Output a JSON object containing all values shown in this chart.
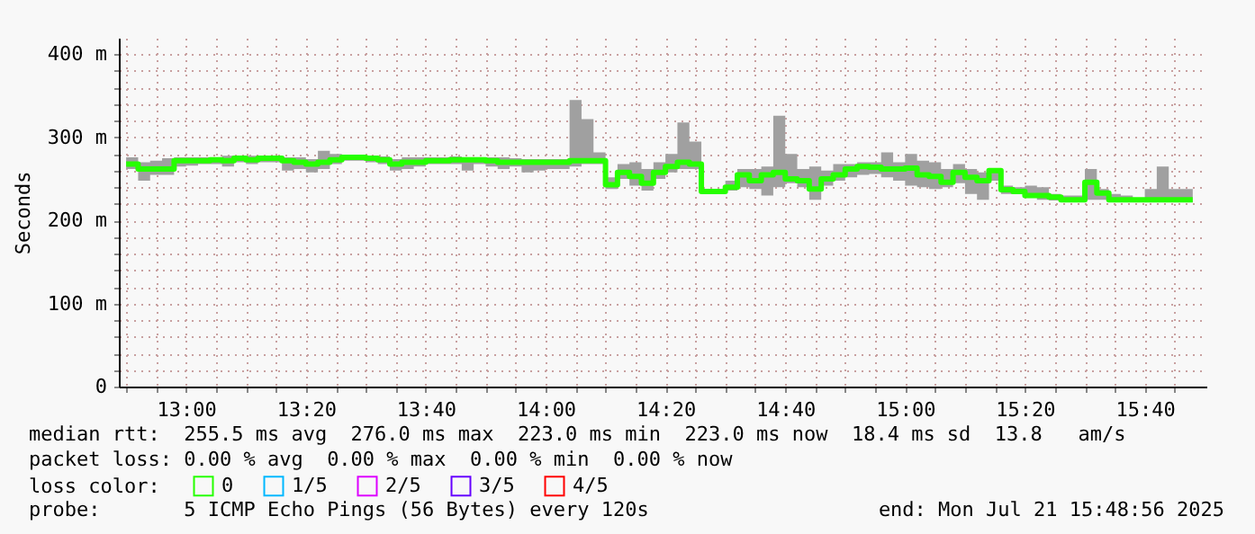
{
  "chart_data": {
    "type": "step",
    "ylabel": "Seconds",
    "legend_title": "loss color:",
    "legend": "bottom",
    "grid": true,
    "marker": "none",
    "xlim": [
      12.813,
      15.838
    ],
    "ylim": [
      0,
      420
    ],
    "xticks": [
      {
        "value": 12.8333,
        "label": null
      },
      {
        "value": 12.9167,
        "label": null
      },
      {
        "value": 13,
        "label": "13:00"
      },
      {
        "value": 13.0833,
        "label": null
      },
      {
        "value": 13.1667,
        "label": null
      },
      {
        "value": 13.25,
        "label": null
      },
      {
        "value": 13.3333,
        "label": "13:20"
      },
      {
        "value": 13.4167,
        "label": null
      },
      {
        "value": 13.5,
        "label": null
      },
      {
        "value": 13.5833,
        "label": null
      },
      {
        "value": 13.6667,
        "label": "13:40"
      },
      {
        "value": 13.75,
        "label": null
      },
      {
        "value": 13.8333,
        "label": null
      },
      {
        "value": 13.9167,
        "label": null
      },
      {
        "value": 14,
        "label": "14:00"
      },
      {
        "value": 14.0833,
        "label": null
      },
      {
        "value": 14.1667,
        "label": null
      },
      {
        "value": 14.25,
        "label": null
      },
      {
        "value": 14.3333,
        "label": "14:20"
      },
      {
        "value": 14.4167,
        "label": null
      },
      {
        "value": 14.5,
        "label": null
      },
      {
        "value": 14.5833,
        "label": null
      },
      {
        "value": 14.6667,
        "label": "14:40"
      },
      {
        "value": 14.75,
        "label": null
      },
      {
        "value": 14.8333,
        "label": null
      },
      {
        "value": 14.9167,
        "label": null
      },
      {
        "value": 15,
        "label": "15:00"
      },
      {
        "value": 15.0833,
        "label": null
      },
      {
        "value": 15.1667,
        "label": null
      },
      {
        "value": 15.25,
        "label": null
      },
      {
        "value": 15.3333,
        "label": "15:20"
      },
      {
        "value": 15.4167,
        "label": null
      },
      {
        "value": 15.5,
        "label": null
      },
      {
        "value": 15.5833,
        "label": null
      },
      {
        "value": 15.6667,
        "label": "15:40"
      },
      {
        "value": 15.75,
        "label": null
      }
    ],
    "yticks": [
      0,
      {
        "value": 20,
        "label": null
      },
      {
        "value": 40,
        "label": null
      },
      {
        "value": 60,
        "label": null
      },
      {
        "value": 80,
        "label": null
      },
      {
        "value": 100,
        "label": "100 m"
      },
      {
        "value": 120,
        "label": null
      },
      {
        "value": 140,
        "label": null
      },
      {
        "value": 160,
        "label": null
      },
      {
        "value": 180,
        "label": null
      },
      {
        "value": 200,
        "label": "200 m"
      },
      {
        "value": 220,
        "label": null
      },
      {
        "value": 240,
        "label": null
      },
      {
        "value": 260,
        "label": null
      },
      {
        "value": 280,
        "label": null
      },
      {
        "value": 300,
        "label": "300 m"
      },
      {
        "value": 320,
        "label": null
      },
      {
        "value": 340,
        "label": null
      },
      {
        "value": 360,
        "label": null
      },
      {
        "value": 380,
        "label": null
      },
      {
        "value": 400,
        "label": "400 m"
      }
    ],
    "x": [
      12.8333,
      12.8667,
      12.9,
      12.9333,
      12.9667,
      13,
      13.0333,
      13.0667,
      13.1,
      13.1333,
      13.1667,
      13.2,
      13.2333,
      13.2667,
      13.3,
      13.3333,
      13.3667,
      13.4,
      13.4333,
      13.4667,
      13.5,
      13.5333,
      13.5667,
      13.6,
      13.6333,
      13.6667,
      13.7,
      13.7333,
      13.7667,
      13.8,
      13.8333,
      13.8667,
      13.9,
      13.9333,
      13.9667,
      14,
      14.0333,
      14.0667,
      14.1,
      14.1333,
      14.1667,
      14.2,
      14.2333,
      14.2667,
      14.3,
      14.3333,
      14.3667,
      14.4,
      14.4333,
      14.4667,
      14.5,
      14.5333,
      14.5667,
      14.6,
      14.6333,
      14.6667,
      14.7,
      14.7333,
      14.7667,
      14.8,
      14.8333,
      14.8667,
      14.9,
      14.9333,
      14.9667,
      15,
      15.0333,
      15.0667,
      15.1,
      15.1333,
      15.1667,
      15.2,
      15.2333,
      15.2667,
      15.3,
      15.3333,
      15.3667,
      15.4,
      15.4333,
      15.4667,
      15.5,
      15.5333,
      15.5667,
      15.6,
      15.6333,
      15.6667,
      15.7,
      15.7333,
      15.7667,
      15.8
    ],
    "series": [
      {
        "name": "0",
        "color": "#26ff00",
        "values": [
          268,
          262,
          262,
          262,
          272,
          272,
          272,
          273,
          272,
          275,
          273,
          275,
          275,
          272,
          270,
          268,
          270,
          273,
          276,
          276,
          275,
          273,
          268,
          270,
          270,
          272,
          272,
          273,
          273,
          273,
          272,
          270,
          270,
          270,
          270,
          270,
          270,
          272,
          272,
          272,
          243,
          258,
          253,
          245,
          258,
          265,
          270,
          268,
          235,
          235,
          240,
          255,
          248,
          255,
          258,
          250,
          248,
          238,
          250,
          255,
          262,
          265,
          264,
          262,
          262,
          263,
          255,
          253,
          246,
          258,
          252,
          248,
          260,
          237,
          235,
          230,
          230,
          228,
          225,
          225,
          246,
          233,
          225,
          225,
          225,
          225,
          225,
          225,
          225,
          225
        ],
        "lower": [
          262,
          248,
          255,
          255,
          265,
          266,
          268,
          268,
          265,
          270,
          268,
          270,
          270,
          260,
          262,
          258,
          262,
          268,
          272,
          272,
          270,
          268,
          260,
          262,
          265,
          268,
          268,
          268,
          260,
          268,
          265,
          262,
          265,
          258,
          260,
          262,
          262,
          265,
          268,
          268,
          238,
          250,
          242,
          236,
          250,
          258,
          262,
          262,
          232,
          232,
          236,
          240,
          238,
          230,
          240,
          245,
          240,
          225,
          242,
          248,
          252,
          255,
          256,
          252,
          248,
          242,
          240,
          238,
          240,
          245,
          232,
          225,
          248,
          232,
          232,
          228,
          225,
          224,
          222,
          222,
          225,
          225,
          222,
          222,
          222,
          222,
          222,
          222,
          222,
          222
        ],
        "upper": [
          276,
          270,
          272,
          275,
          276,
          276,
          276,
          276,
          278,
          278,
          278,
          277,
          277,
          276,
          276,
          274,
          284,
          280,
          278,
          278,
          277,
          277,
          274,
          276,
          276,
          276,
          276,
          277,
          276,
          276,
          276,
          276,
          275,
          274,
          274,
          274,
          274,
          345,
          322,
          282,
          252,
          268,
          270,
          262,
          270,
          280,
          318,
          295,
          238,
          238,
          248,
          262,
          262,
          265,
          326,
          280,
          262,
          265,
          260,
          268,
          268,
          270,
          270,
          282,
          270,
          280,
          272,
          270,
          262,
          268,
          262,
          258,
          262,
          242,
          240,
          242,
          240,
          232,
          230,
          230,
          262,
          238,
          232,
          230,
          225,
          238,
          265,
          238,
          238,
          228
        ]
      },
      {
        "name": "1/5",
        "color": "#00b8ff",
        "values": [
          null,
          null,
          null,
          null,
          null,
          null,
          null,
          null,
          null,
          null,
          null,
          null,
          null,
          null,
          null,
          null,
          null,
          null,
          null,
          null,
          null,
          null,
          null,
          null,
          null,
          null,
          null,
          null,
          null,
          null,
          null,
          null,
          null,
          null,
          null,
          null,
          null,
          null,
          null,
          null,
          null,
          null,
          null,
          null,
          null,
          null,
          null,
          null,
          null,
          null,
          null,
          null,
          null,
          null,
          null,
          null,
          null,
          null,
          null,
          null,
          null,
          null,
          null,
          null,
          null,
          null,
          null,
          null,
          null,
          null,
          null,
          null,
          null,
          null,
          null,
          null,
          null,
          null,
          null,
          null,
          null,
          null,
          null,
          null,
          null,
          null,
          null,
          null,
          null,
          null
        ]
      },
      {
        "name": "2/5",
        "color": "#dd00ff",
        "values": [
          null,
          null,
          null,
          null,
          null,
          null,
          null,
          null,
          null,
          null,
          null,
          null,
          null,
          null,
          null,
          null,
          null,
          null,
          null,
          null,
          null,
          null,
          null,
          null,
          null,
          null,
          null,
          null,
          null,
          null,
          null,
          null,
          null,
          null,
          null,
          null,
          null,
          null,
          null,
          null,
          null,
          null,
          null,
          null,
          null,
          null,
          null,
          null,
          null,
          null,
          null,
          null,
          null,
          null,
          null,
          null,
          null,
          null,
          null,
          null,
          null,
          null,
          null,
          null,
          null,
          null,
          null,
          null,
          null,
          null,
          null,
          null,
          null,
          null,
          null,
          null,
          null,
          null,
          null,
          null,
          null,
          null,
          null,
          null,
          null,
          null,
          null,
          null,
          null,
          null
        ]
      },
      {
        "name": "3/5",
        "color": "#6600ff",
        "values": [
          null,
          null,
          null,
          null,
          null,
          null,
          null,
          null,
          null,
          null,
          null,
          null,
          null,
          null,
          null,
          null,
          null,
          null,
          null,
          null,
          null,
          null,
          null,
          null,
          null,
          null,
          null,
          null,
          null,
          null,
          null,
          null,
          null,
          null,
          null,
          null,
          null,
          null,
          null,
          null,
          null,
          null,
          null,
          null,
          null,
          null,
          null,
          null,
          null,
          null,
          null,
          null,
          null,
          null,
          null,
          null,
          null,
          null,
          null,
          null,
          null,
          null,
          null,
          null,
          null,
          null,
          null,
          null,
          null,
          null,
          null,
          null,
          null,
          null,
          null,
          null,
          null,
          null,
          null,
          null,
          null,
          null,
          null,
          null,
          null,
          null,
          null,
          null,
          null,
          null
        ]
      },
      {
        "name": "4/5",
        "color": "#ff0000",
        "values": [
          null,
          null,
          null,
          null,
          null,
          null,
          null,
          null,
          null,
          null,
          null,
          null,
          null,
          null,
          null,
          null,
          null,
          null,
          null,
          null,
          null,
          null,
          null,
          null,
          null,
          null,
          null,
          null,
          null,
          null,
          null,
          null,
          null,
          null,
          null,
          null,
          null,
          null,
          null,
          null,
          null,
          null,
          null,
          null,
          null,
          null,
          null,
          null,
          null,
          null,
          null,
          null,
          null,
          null,
          null,
          null,
          null,
          null,
          null,
          null,
          null,
          null,
          null,
          null,
          null,
          null,
          null,
          null,
          null,
          null,
          null,
          null,
          null,
          null,
          null,
          null,
          null,
          null,
          null,
          null,
          null,
          null,
          null,
          null,
          null,
          null,
          null,
          null,
          null,
          null
        ]
      }
    ],
    "annotations": [
      "median rtt:  255.5 ms avg  276.0 ms max  223.0 ms min  223.0 ms now  18.4 ms sd  13.8   am/s",
      "packet loss: 0.00 % avg  0.00 % max  0.00 % min  0.00 % now",
      "probe:       5 ICMP Echo Pings (56 Bytes) every 120s",
      "end: Mon Jul 21 15:48:56 2025"
    ]
  }
}
